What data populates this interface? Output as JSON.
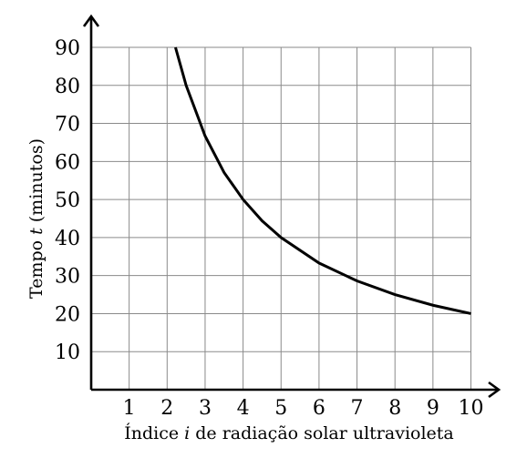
{
  "chart_data": {
    "type": "line",
    "xlabel": "Índice i de radiação solar ultravioleta",
    "xlabel_parts": [
      "Índice ",
      "i",
      " de radiação solar ultravioleta"
    ],
    "ylabel": "Tempo t (minutos)",
    "ylabel_parts": [
      "Tempo ",
      "t",
      " (minutos)"
    ],
    "xlim": [
      0,
      10
    ],
    "ylim": [
      0,
      90
    ],
    "x_ticks": [
      1,
      2,
      3,
      4,
      5,
      6,
      7,
      8,
      9,
      10
    ],
    "y_ticks": [
      10,
      20,
      30,
      40,
      50,
      60,
      70,
      80,
      90
    ],
    "grid": true,
    "series": [
      {
        "x": [
          2.22,
          2.5,
          3,
          3.5,
          4,
          4.5,
          5,
          6,
          7,
          8,
          9,
          10
        ],
        "y": [
          90,
          80,
          66.7,
          57.1,
          50,
          44.4,
          40,
          33.3,
          28.6,
          25,
          22.2,
          20
        ]
      }
    ]
  }
}
